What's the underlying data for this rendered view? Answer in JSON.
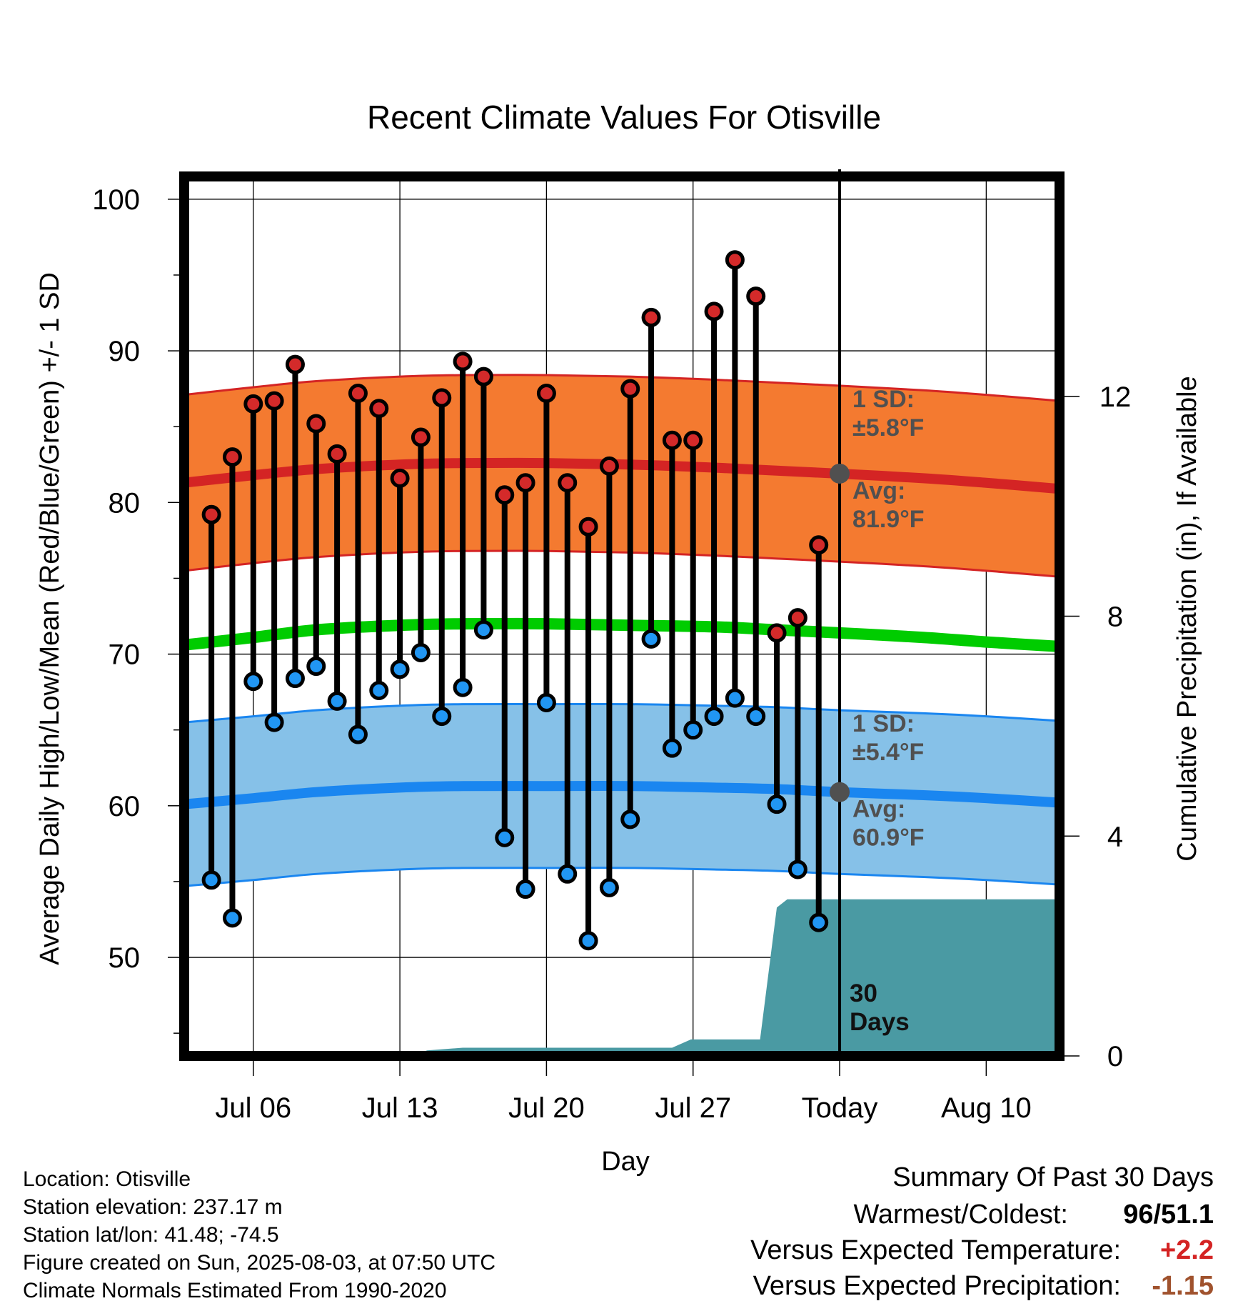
{
  "chart_data": {
    "type": "line",
    "title": "Recent Climate Values For Otisville",
    "xlabel": "Day",
    "ylabel": "Average Daily High/Low/Mean (Red/Blue/Green) +/- 1 SD",
    "y2label": "Cumulative Precipitation (in), If Available",
    "ylim": [
      43.5,
      101.5
    ],
    "y_ticks": [
      "100",
      "90",
      "80",
      "70",
      "60",
      "50"
    ],
    "y2lim": [
      0,
      16
    ],
    "y2_ticks": [
      "12",
      "8",
      "4",
      "0"
    ],
    "x_range_days": [
      2.7,
      44.5
    ],
    "x_ticks": [
      {
        "day": 6,
        "label": "Jul 06"
      },
      {
        "day": 13,
        "label": "Jul 13"
      },
      {
        "day": 20,
        "label": "Jul 20"
      },
      {
        "day": 27,
        "label": "Jul 27"
      },
      {
        "day": 34,
        "label": "Today"
      },
      {
        "day": 41,
        "label": "Aug 10"
      }
    ],
    "today_day": 34,
    "grid": true,
    "observed": {
      "days": [
        4,
        5,
        6,
        7,
        8,
        9,
        10,
        11,
        12,
        13,
        14,
        15,
        16,
        17,
        18,
        19,
        20,
        21,
        22,
        23,
        24,
        25,
        26,
        27,
        28,
        29,
        30,
        31,
        32,
        33
      ],
      "high": [
        79.2,
        83.0,
        86.5,
        86.7,
        89.1,
        85.2,
        83.2,
        87.2,
        86.2,
        81.6,
        84.3,
        86.9,
        89.3,
        88.3,
        80.5,
        81.3,
        87.2,
        81.3,
        78.4,
        82.4,
        87.5,
        92.2,
        84.1,
        84.1,
        92.6,
        96.0,
        93.6,
        71.4,
        72.4,
        77.2
      ],
      "low": [
        55.1,
        52.6,
        68.2,
        65.5,
        68.4,
        69.2,
        66.9,
        64.7,
        67.6,
        69.0,
        70.1,
        65.9,
        67.8,
        71.6,
        57.9,
        54.5,
        66.8,
        55.5,
        51.1,
        54.6,
        59.1,
        71.0,
        63.8,
        65.0,
        65.9,
        67.1,
        65.9,
        60.1,
        55.8,
        52.3
      ]
    },
    "normals": {
      "days": [
        2.7,
        6,
        9,
        13,
        16,
        20,
        24,
        28,
        31,
        34,
        38,
        41,
        44.5
      ],
      "high_avg": [
        81.3,
        81.8,
        82.2,
        82.5,
        82.6,
        82.6,
        82.5,
        82.3,
        82.1,
        81.9,
        81.6,
        81.3,
        80.9
      ],
      "low_avg": [
        60.1,
        60.5,
        60.9,
        61.2,
        61.3,
        61.3,
        61.3,
        61.2,
        61.1,
        60.9,
        60.7,
        60.5,
        60.2
      ],
      "mean_avg": [
        70.6,
        71.1,
        71.6,
        71.9,
        72.0,
        72.0,
        71.9,
        71.8,
        71.6,
        71.4,
        71.1,
        70.8,
        70.5
      ],
      "high_sd": 5.8,
      "low_sd": 5.4
    },
    "precipitation": {
      "days": [
        2.7,
        13.5,
        14.3,
        16,
        18,
        22,
        26,
        26.9,
        30.2,
        31,
        31.5,
        34,
        44.5
      ],
      "cumulative": [
        0,
        0,
        0.1,
        0.15,
        0.15,
        0.15,
        0.15,
        0.3,
        0.3,
        2.7,
        2.85,
        2.85,
        2.85
      ]
    },
    "annotations": {
      "high_sd_label": "1 SD:",
      "high_sd_value": "±5.8°F",
      "high_avg_label": "Avg:",
      "high_avg_value": "81.9°F",
      "low_sd_label": "1 SD:",
      "low_sd_value": "±5.4°F",
      "low_avg_label": "Avg:",
      "low_avg_value": "60.9°F",
      "days_line1": "30",
      "days_line2": "Days"
    }
  },
  "footer": {
    "location": "Location: Otisville",
    "elevation": "Station elevation: 237.17 m",
    "latlon": "Station lat/lon: 41.48; -74.5",
    "created": "Figure created on Sun, 2025-08-03, at 07:50 UTC",
    "normals": "Climate Normals Estimated From 1990-2020"
  },
  "summary": {
    "title": "Summary Of Past 30 Days",
    "warmest_label": "Warmest/Coldest:",
    "warmest_value": "96/51.1",
    "temp_label": "Versus Expected Temperature:",
    "temp_value": "+2.2",
    "precip_label": "Versus Expected Precipitation:",
    "precip_value": "-1.15"
  },
  "colors": {
    "high_band": "#f47a30",
    "high_line": "#d42424",
    "low_band": "#86c1e8",
    "low_line": "#1a86f0",
    "mean_line": "#00cc00",
    "precip_fill": "#4a9aa3",
    "high_dot": "#d42a2a",
    "low_dot": "#2196f3",
    "annotation": "#505050",
    "temp_delta": "#d42424",
    "precip_delta": "#a0522d"
  }
}
